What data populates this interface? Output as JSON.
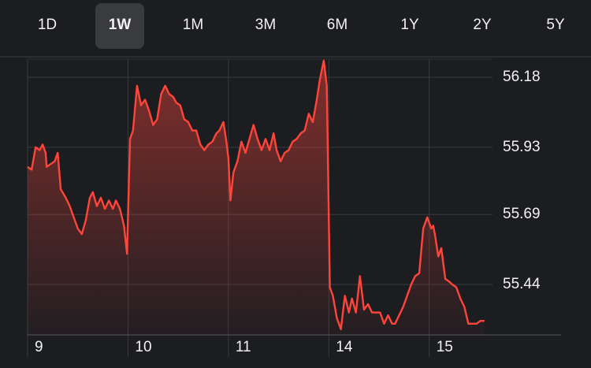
{
  "tabs": [
    "1D",
    "1W",
    "1M",
    "3M",
    "6M",
    "1Y",
    "2Y",
    "5Y"
  ],
  "selected_tab": 1,
  "chart_data": {
    "type": "line",
    "color": "#ff453a",
    "grid": true,
    "xlim": [
      0,
      4.63
    ],
    "ylim": [
      55.26,
      56.245
    ],
    "xticks": [
      {
        "value": 0,
        "label": "9"
      },
      {
        "value": 1,
        "label": "10"
      },
      {
        "value": 2,
        "label": "11"
      },
      {
        "value": 3,
        "label": "14"
      },
      {
        "value": 4,
        "label": "15"
      }
    ],
    "yticks": [
      55.44,
      55.69,
      55.93,
      56.18
    ],
    "x": [
      0,
      0.04,
      0.08,
      0.12,
      0.15,
      0.18,
      0.19,
      0.23,
      0.27,
      0.3,
      0.33,
      0.38,
      0.42,
      0.46,
      0.5,
      0.54,
      0.58,
      0.62,
      0.65,
      0.69,
      0.73,
      0.77,
      0.81,
      0.85,
      0.88,
      0.92,
      0.96,
      0.99,
      1.02,
      1.05,
      1.09,
      1.13,
      1.17,
      1.21,
      1.25,
      1.29,
      1.33,
      1.37,
      1.41,
      1.45,
      1.48,
      1.52,
      1.56,
      1.6,
      1.64,
      1.68,
      1.72,
      1.76,
      1.8,
      1.84,
      1.88,
      1.91,
      1.95,
      1.98,
      2,
      2.02,
      2.05,
      2.09,
      2.13,
      2.17,
      2.21,
      2.25,
      2.29,
      2.33,
      2.37,
      2.41,
      2.45,
      2.48,
      2.52,
      2.56,
      2.6,
      2.64,
      2.68,
      2.72,
      2.76,
      2.8,
      2.84,
      2.88,
      2.91,
      2.95,
      2.98,
      3.01,
      3.04,
      3.08,
      3.12,
      3.16,
      3.2,
      3.23,
      3.27,
      3.31,
      3.35,
      3.39,
      3.43,
      3.47,
      3.51,
      3.55,
      3.59,
      3.63,
      3.66,
      3.7,
      3.74,
      3.78,
      3.82,
      3.86,
      3.9,
      3.94,
      3.98,
      4.02,
      4.04,
      4.06,
      4.09,
      4.12,
      4.16,
      4.2,
      4.23,
      4.27,
      4.31,
      4.35,
      4.39,
      4.43,
      4.47,
      4.51,
      4.55
    ],
    "values": [
      55.86,
      55.85,
      55.93,
      55.92,
      55.94,
      55.91,
      55.86,
      55.87,
      55.88,
      55.91,
      55.78,
      55.75,
      55.72,
      55.68,
      55.64,
      55.62,
      55.67,
      55.75,
      55.77,
      55.72,
      55.75,
      55.71,
      55.74,
      55.71,
      55.74,
      55.71,
      55.65,
      55.55,
      55.96,
      55.99,
      56.15,
      56.08,
      56.1,
      56.06,
      56.01,
      56.03,
      56.12,
      56.15,
      56.12,
      56.11,
      56.09,
      56.08,
      56.03,
      56.02,
      55.99,
      55.99,
      55.94,
      55.92,
      55.94,
      55.95,
      55.98,
      55.99,
      56.02,
      55.95,
      55.89,
      55.74,
      55.84,
      55.88,
      55.95,
      55.91,
      55.96,
      56.01,
      55.96,
      55.92,
      55.96,
      55.92,
      55.98,
      55.92,
      55.88,
      55.91,
      55.92,
      55.95,
      55.96,
      55.98,
      55.99,
      56.05,
      56.02,
      56.1,
      56.17,
      56.24,
      56.15,
      55.43,
      55.4,
      55.32,
      55.28,
      55.4,
      55.34,
      55.39,
      55.34,
      55.47,
      55.35,
      55.37,
      55.34,
      55.34,
      55.34,
      55.3,
      55.33,
      55.3,
      55.3,
      55.33,
      55.36,
      55.4,
      55.44,
      55.47,
      55.48,
      55.64,
      55.68,
      55.64,
      55.65,
      55.61,
      55.54,
      55.57,
      55.46,
      55.45,
      55.44,
      55.43,
      55.39,
      55.36,
      55.3,
      55.3,
      55.3,
      55.31,
      55.31
    ]
  }
}
